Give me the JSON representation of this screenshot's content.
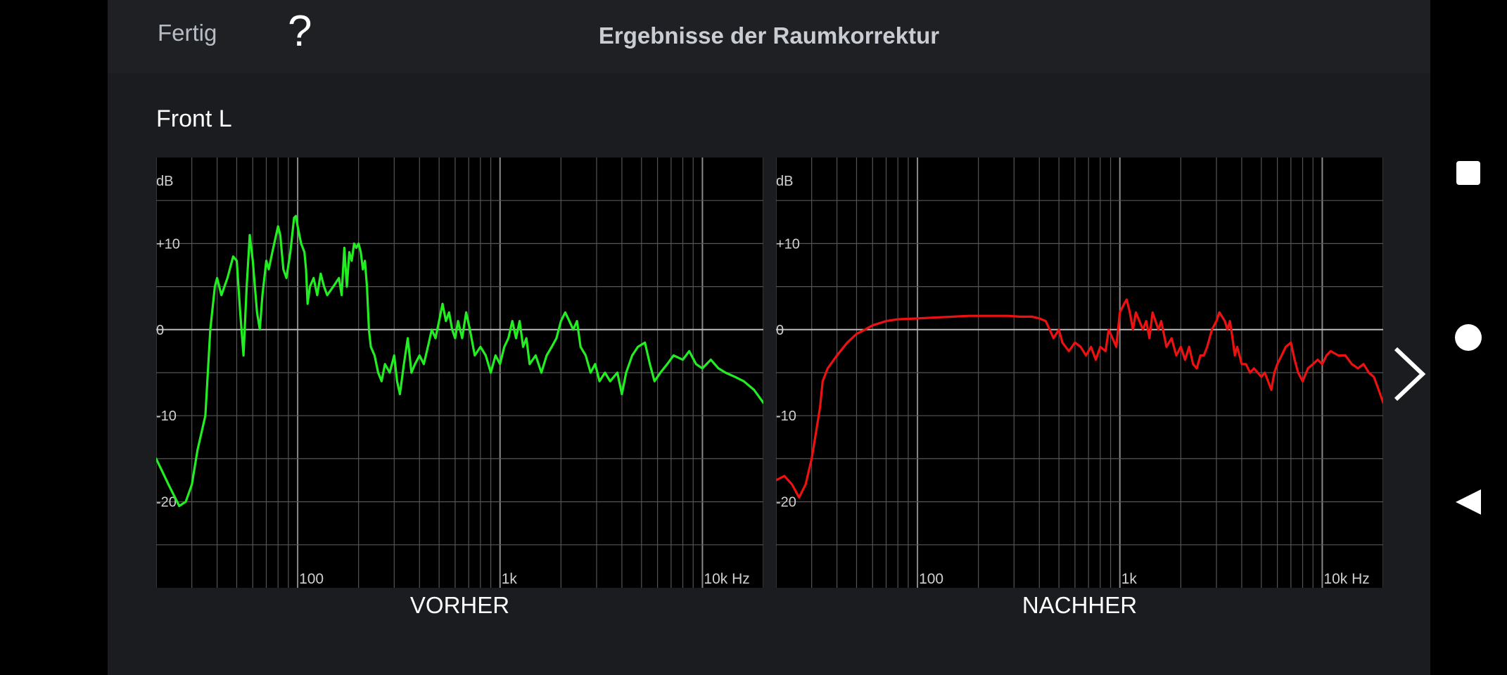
{
  "header": {
    "done_label": "Fertig",
    "help_label": "?",
    "title": "Ergebnisse der Raumkorrektur"
  },
  "channel": "Front L",
  "colors": {
    "before": "#22ee22",
    "after": "#ee1111",
    "grid": "#555555",
    "axis_zero": "#bbbbbb",
    "plot_bg": "#000000"
  },
  "chart_data": [
    {
      "type": "line",
      "caption": "VORHER",
      "ylabel": "dB",
      "xunit": "Hz",
      "xscale": "log",
      "xlim": [
        20,
        20000
      ],
      "ylim": [
        -30,
        20
      ],
      "yticks": [
        {
          "value": 10,
          "label": "+10"
        },
        {
          "value": 0,
          "label": "0"
        },
        {
          "value": -10,
          "label": "-10"
        },
        {
          "value": -20,
          "label": "-20"
        }
      ],
      "xticks": [
        {
          "value": 100,
          "label": "100"
        },
        {
          "value": 1000,
          "label": "1k"
        },
        {
          "value": 10000,
          "label": "10k Hz"
        }
      ],
      "grid": true,
      "series": [
        {
          "color": "#22ee22",
          "points": [
            [
              20,
              -15
            ],
            [
              23,
              -18
            ],
            [
              26,
              -20.5
            ],
            [
              28,
              -20
            ],
            [
              30,
              -18
            ],
            [
              32,
              -14
            ],
            [
              35,
              -10
            ],
            [
              37,
              0
            ],
            [
              39,
              5
            ],
            [
              40,
              6
            ],
            [
              42,
              4
            ],
            [
              45,
              6
            ],
            [
              48,
              8.5
            ],
            [
              50,
              8
            ],
            [
              52,
              2
            ],
            [
              54,
              -3
            ],
            [
              56,
              5
            ],
            [
              58,
              11
            ],
            [
              60,
              8
            ],
            [
              63,
              2
            ],
            [
              65,
              0
            ],
            [
              67,
              4
            ],
            [
              70,
              8
            ],
            [
              72,
              7
            ],
            [
              75,
              9
            ],
            [
              80,
              12
            ],
            [
              82,
              11
            ],
            [
              85,
              7
            ],
            [
              88,
              6
            ],
            [
              92,
              9
            ],
            [
              96,
              13
            ],
            [
              98,
              13.2
            ],
            [
              100,
              12
            ],
            [
              104,
              10
            ],
            [
              108,
              9
            ],
            [
              110,
              7
            ],
            [
              112,
              3
            ],
            [
              115,
              5
            ],
            [
              120,
              6
            ],
            [
              125,
              4
            ],
            [
              130,
              6.5
            ],
            [
              135,
              5
            ],
            [
              140,
              4
            ],
            [
              150,
              5
            ],
            [
              160,
              6
            ],
            [
              165,
              4
            ],
            [
              170,
              9.5
            ],
            [
              175,
              5
            ],
            [
              180,
              9
            ],
            [
              185,
              8
            ],
            [
              190,
              10
            ],
            [
              195,
              9.5
            ],
            [
              200,
              10
            ],
            [
              205,
              9
            ],
            [
              210,
              7
            ],
            [
              215,
              8
            ],
            [
              220,
              5
            ],
            [
              225,
              0
            ],
            [
              230,
              -2
            ],
            [
              240,
              -3
            ],
            [
              250,
              -5
            ],
            [
              260,
              -6
            ],
            [
              270,
              -4
            ],
            [
              285,
              -5
            ],
            [
              300,
              -3
            ],
            [
              310,
              -6
            ],
            [
              320,
              -7.5
            ],
            [
              335,
              -4
            ],
            [
              350,
              -1
            ],
            [
              365,
              -5
            ],
            [
              380,
              -4
            ],
            [
              400,
              -3
            ],
            [
              420,
              -4
            ],
            [
              440,
              -2
            ],
            [
              460,
              0
            ],
            [
              480,
              -1
            ],
            [
              500,
              1
            ],
            [
              520,
              3
            ],
            [
              540,
              1
            ],
            [
              560,
              2
            ],
            [
              580,
              0
            ],
            [
              600,
              -1
            ],
            [
              620,
              1
            ],
            [
              650,
              -1
            ],
            [
              680,
              2
            ],
            [
              710,
              0
            ],
            [
              750,
              -3
            ],
            [
              800,
              -2
            ],
            [
              850,
              -3
            ],
            [
              900,
              -5
            ],
            [
              950,
              -3
            ],
            [
              1000,
              -4
            ],
            [
              1050,
              -2
            ],
            [
              1100,
              -1
            ],
            [
              1150,
              1
            ],
            [
              1200,
              -1
            ],
            [
              1250,
              1
            ],
            [
              1300,
              -2
            ],
            [
              1350,
              -1
            ],
            [
              1400,
              -4
            ],
            [
              1500,
              -3
            ],
            [
              1600,
              -5
            ],
            [
              1700,
              -3
            ],
            [
              1800,
              -2
            ],
            [
              1900,
              -1
            ],
            [
              2000,
              1
            ],
            [
              2100,
              2
            ],
            [
              2200,
              1
            ],
            [
              2300,
              0
            ],
            [
              2400,
              1
            ],
            [
              2500,
              -2
            ],
            [
              2650,
              -3
            ],
            [
              2800,
              -5
            ],
            [
              2950,
              -4
            ],
            [
              3100,
              -6
            ],
            [
              3300,
              -5
            ],
            [
              3500,
              -6
            ],
            [
              3800,
              -5
            ],
            [
              4000,
              -7.5
            ],
            [
              4200,
              -5
            ],
            [
              4500,
              -3
            ],
            [
              4800,
              -2
            ],
            [
              5200,
              -1.5
            ],
            [
              5500,
              -4
            ],
            [
              5800,
              -6
            ],
            [
              6200,
              -5
            ],
            [
              6700,
              -4
            ],
            [
              7200,
              -3
            ],
            [
              8000,
              -3.5
            ],
            [
              8600,
              -2.5
            ],
            [
              9300,
              -4
            ],
            [
              10000,
              -4.5
            ],
            [
              11000,
              -3.5
            ],
            [
              12000,
              -4.5
            ],
            [
              13000,
              -5
            ],
            [
              14500,
              -5.5
            ],
            [
              16000,
              -6
            ],
            [
              18000,
              -7
            ],
            [
              20000,
              -8.5
            ]
          ]
        }
      ]
    },
    {
      "type": "line",
      "caption": "NACHHER",
      "ylabel": "dB",
      "xunit": "Hz",
      "xscale": "log",
      "xlim": [
        20,
        20000
      ],
      "ylim": [
        -30,
        20
      ],
      "yticks": [
        {
          "value": 10,
          "label": "+10"
        },
        {
          "value": 0,
          "label": "0"
        },
        {
          "value": -10,
          "label": "-10"
        },
        {
          "value": -20,
          "label": "-20"
        }
      ],
      "xticks": [
        {
          "value": 100,
          "label": "100"
        },
        {
          "value": 1000,
          "label": "1k"
        },
        {
          "value": 10000,
          "label": "10k Hz"
        }
      ],
      "grid": true,
      "series": [
        {
          "color": "#ee1111",
          "points": [
            [
              20,
              -17.5
            ],
            [
              22,
              -17
            ],
            [
              24,
              -18
            ],
            [
              26,
              -19.5
            ],
            [
              28,
              -18
            ],
            [
              30,
              -15
            ],
            [
              32,
              -11
            ],
            [
              33,
              -9
            ],
            [
              34,
              -6
            ],
            [
              36,
              -4.5
            ],
            [
              40,
              -3
            ],
            [
              45,
              -1.5
            ],
            [
              50,
              -0.5
            ],
            [
              55,
              0
            ],
            [
              60,
              0.5
            ],
            [
              70,
              1
            ],
            [
              80,
              1.2
            ],
            [
              100,
              1.3
            ],
            [
              120,
              1.4
            ],
            [
              150,
              1.5
            ],
            [
              180,
              1.6
            ],
            [
              200,
              1.6
            ],
            [
              230,
              1.6
            ],
            [
              280,
              1.6
            ],
            [
              320,
              1.5
            ],
            [
              370,
              1.5
            ],
            [
              400,
              1.3
            ],
            [
              430,
              1
            ],
            [
              450,
              0
            ],
            [
              470,
              -1
            ],
            [
              500,
              0
            ],
            [
              520,
              -1.5
            ],
            [
              560,
              -2.5
            ],
            [
              600,
              -1.5
            ],
            [
              640,
              -2
            ],
            [
              680,
              -3
            ],
            [
              720,
              -2
            ],
            [
              760,
              -3.5
            ],
            [
              800,
              -2
            ],
            [
              850,
              -2.5
            ],
            [
              880,
              0
            ],
            [
              920,
              -1
            ],
            [
              960,
              -2
            ],
            [
              1000,
              2
            ],
            [
              1050,
              3
            ],
            [
              1080,
              3.5
            ],
            [
              1120,
              2
            ],
            [
              1160,
              0
            ],
            [
              1200,
              2
            ],
            [
              1250,
              1
            ],
            [
              1300,
              0
            ],
            [
              1350,
              1
            ],
            [
              1400,
              -1
            ],
            [
              1450,
              2
            ],
            [
              1500,
              1
            ],
            [
              1550,
              0
            ],
            [
              1600,
              1
            ],
            [
              1700,
              -2
            ],
            [
              1800,
              -1
            ],
            [
              1900,
              -3
            ],
            [
              2000,
              -2
            ],
            [
              2100,
              -3.5
            ],
            [
              2200,
              -2
            ],
            [
              2300,
              -4
            ],
            [
              2400,
              -4.5
            ],
            [
              2500,
              -3
            ],
            [
              2600,
              -3
            ],
            [
              2700,
              -2
            ],
            [
              2850,
              0
            ],
            [
              3000,
              1
            ],
            [
              3100,
              2
            ],
            [
              3200,
              1.5
            ],
            [
              3300,
              1
            ],
            [
              3400,
              0
            ],
            [
              3500,
              1
            ],
            [
              3600,
              -1
            ],
            [
              3700,
              -3
            ],
            [
              3800,
              -2
            ],
            [
              3900,
              -3
            ],
            [
              4000,
              -4
            ],
            [
              4200,
              -4
            ],
            [
              4400,
              -5
            ],
            [
              4600,
              -4.5
            ],
            [
              4800,
              -5
            ],
            [
              5000,
              -5.5
            ],
            [
              5200,
              -5
            ],
            [
              5400,
              -6
            ],
            [
              5600,
              -7
            ],
            [
              5800,
              -5
            ],
            [
              6000,
              -4
            ],
            [
              6300,
              -3
            ],
            [
              6600,
              -2
            ],
            [
              7000,
              -1.5
            ],
            [
              7300,
              -3.5
            ],
            [
              7600,
              -5
            ],
            [
              8000,
              -6
            ],
            [
              8500,
              -4.5
            ],
            [
              9000,
              -4
            ],
            [
              9500,
              -3.5
            ],
            [
              10000,
              -4
            ],
            [
              10500,
              -3
            ],
            [
              11000,
              -2.5
            ],
            [
              12000,
              -3
            ],
            [
              13000,
              -3
            ],
            [
              14000,
              -4
            ],
            [
              15000,
              -4.5
            ],
            [
              16000,
              -4
            ],
            [
              17000,
              -5
            ],
            [
              18000,
              -5.5
            ],
            [
              19000,
              -7
            ],
            [
              20000,
              -8.5
            ]
          ]
        }
      ]
    }
  ],
  "nav_buttons": {
    "next": "chevron-right-icon",
    "recents": "square-icon",
    "home": "circle-icon",
    "back": "triangle-back-icon"
  }
}
